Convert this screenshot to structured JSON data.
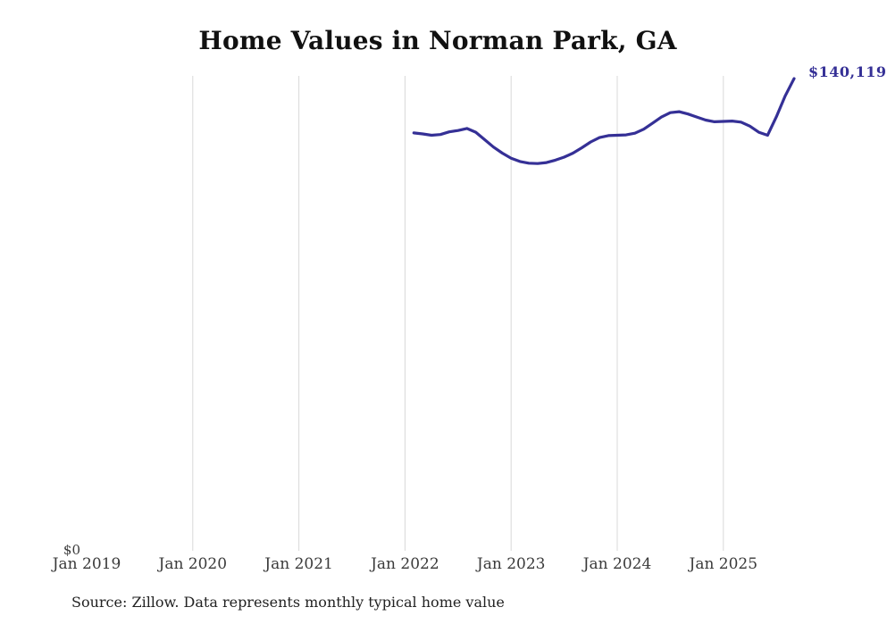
{
  "title": "Home Values in Norman Park, GA",
  "end_label": {
    "text": "$140,119"
  },
  "axes": {
    "zero_label": "$0",
    "x_tick_labels": [
      "Jan 2019",
      "Jan 2020",
      "Jan 2021",
      "Jan 2022",
      "Jan 2023",
      "Jan 2024",
      "Jan 2025"
    ]
  },
  "source": "Source: Zillow. Data represents monthly typical home value",
  "colors": {
    "line": "#353096",
    "end_label": "#353096",
    "grid": "#d8d8d8",
    "title": "#111111",
    "axis_text": "#3a3a3a",
    "source_text": "#222222"
  },
  "chart_data": {
    "type": "line",
    "title": "Home Values in Norman Park, GA",
    "xlabel": "",
    "ylabel": "",
    "ylim": [
      0,
      143000
    ],
    "x_range": [
      "2019-01",
      "2025-11"
    ],
    "grid": "vertical-only",
    "legend_position": "none",
    "gridline_years": [
      2020,
      2021,
      2022,
      2023,
      2024,
      2025
    ],
    "tick_years": [
      2019,
      2020,
      2021,
      2022,
      2023,
      2024,
      2025
    ],
    "final_value": 140119,
    "final_value_label": "$140,119",
    "series": [
      {
        "name": "Typical home value",
        "points": [
          [
            "2022-02",
            124000
          ],
          [
            "2022-03",
            123700
          ],
          [
            "2022-04",
            123300
          ],
          [
            "2022-05",
            123500
          ],
          [
            "2022-06",
            124300
          ],
          [
            "2022-07",
            124700
          ],
          [
            "2022-08",
            125300
          ],
          [
            "2022-09",
            124200
          ],
          [
            "2022-10",
            122000
          ],
          [
            "2022-11",
            119800
          ],
          [
            "2022-12",
            118000
          ],
          [
            "2023-01",
            116500
          ],
          [
            "2023-02",
            115500
          ],
          [
            "2023-03",
            115000
          ],
          [
            "2023-04",
            114900
          ],
          [
            "2023-05",
            115200
          ],
          [
            "2023-06",
            115900
          ],
          [
            "2023-07",
            116800
          ],
          [
            "2023-08",
            118000
          ],
          [
            "2023-09",
            119600
          ],
          [
            "2023-10",
            121300
          ],
          [
            "2023-11",
            122600
          ],
          [
            "2023-12",
            123200
          ],
          [
            "2024-01",
            123300
          ],
          [
            "2024-02",
            123400
          ],
          [
            "2024-03",
            123900
          ],
          [
            "2024-04",
            125100
          ],
          [
            "2024-05",
            126900
          ],
          [
            "2024-06",
            128700
          ],
          [
            "2024-07",
            130000
          ],
          [
            "2024-08",
            130300
          ],
          [
            "2024-09",
            129600
          ],
          [
            "2024-10",
            128700
          ],
          [
            "2024-11",
            127800
          ],
          [
            "2024-12",
            127300
          ],
          [
            "2025-01",
            127400
          ],
          [
            "2025-02",
            127500
          ],
          [
            "2025-03",
            127200
          ],
          [
            "2025-04",
            126000
          ],
          [
            "2025-05",
            124200
          ],
          [
            "2025-06",
            123300
          ],
          [
            "2025-07",
            128800
          ],
          [
            "2025-08",
            135000
          ],
          [
            "2025-09",
            140119
          ]
        ]
      }
    ]
  }
}
